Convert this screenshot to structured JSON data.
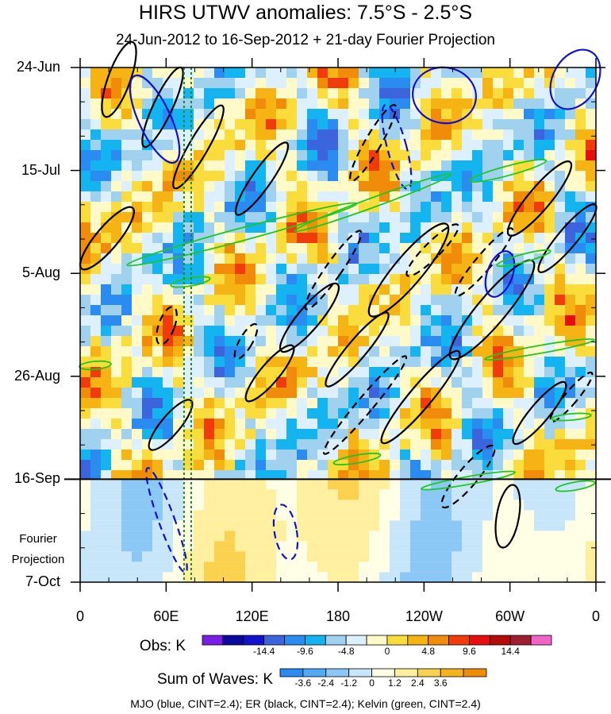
{
  "chart_data": {
    "type": "heatmap",
    "title": "HIRS UTWV anomalies: 7.5°S - 2.5°S",
    "subtitle": "24-Jun-2012 to 16-Sep-2012 + 21-day Fourier Projection",
    "x_ticks": [
      "0",
      "60E",
      "120E",
      "180",
      "120W",
      "60W",
      "0"
    ],
    "x_tick_lon": [
      0,
      60,
      120,
      180,
      240,
      300,
      360
    ],
    "y_ticks": [
      "24-Jun",
      "15-Jul",
      "5-Aug",
      "26-Aug",
      "16-Sep",
      "7-Oct"
    ],
    "y_tick_day": [
      0,
      21,
      42,
      63,
      84,
      105
    ],
    "projection_label_1": "Fourier",
    "projection_label_2": "Projection",
    "projection_start_day": 84,
    "xlim": [
      0,
      360
    ],
    "ylim_days": [
      0,
      105
    ],
    "obs_label": "Obs: K",
    "obs_levels": [
      "-14.4",
      "-9.6",
      "-4.8",
      "0",
      "4.8",
      "9.6",
      "14.4"
    ],
    "obs_colors": [
      "#7a1ee6",
      "#0a0a9c",
      "#1313cc",
      "#3c64dc",
      "#2a8cf0",
      "#14b4f0",
      "#a0d2f0",
      "#dcf0ff",
      "#fffac8",
      "#fadc3c",
      "#f5b414",
      "#f08c0a",
      "#f03c0a",
      "#e60f0f",
      "#b40a0a",
      "#a01e32",
      "#f064c8"
    ],
    "waves_label": "Sum of Waves: K",
    "waves_levels": [
      "-3.6",
      "-2.4",
      "-1.2",
      "0",
      "1.2",
      "2.4",
      "3.6"
    ],
    "waves_colors": [
      "#2a8cf0",
      "#50aaf5",
      "#8cc8f5",
      "#c8e6fa",
      "#ffffe6",
      "#fff0a0",
      "#fad250",
      "#f5b41e",
      "#f08c0a"
    ],
    "series": [
      {
        "name": "MJO",
        "color": "blue",
        "cint": 2.4
      },
      {
        "name": "ER",
        "color": "black",
        "cint": 2.4
      },
      {
        "name": "Kelvin",
        "color": "green",
        "cint": 2.4
      }
    ],
    "reference_lines_lon": [
      72.5,
      77.5
    ],
    "footer": "MJO (blue, CINT=2.4); ER (black, CINT=2.4); Kelvin (green, CINT=2.4)"
  }
}
